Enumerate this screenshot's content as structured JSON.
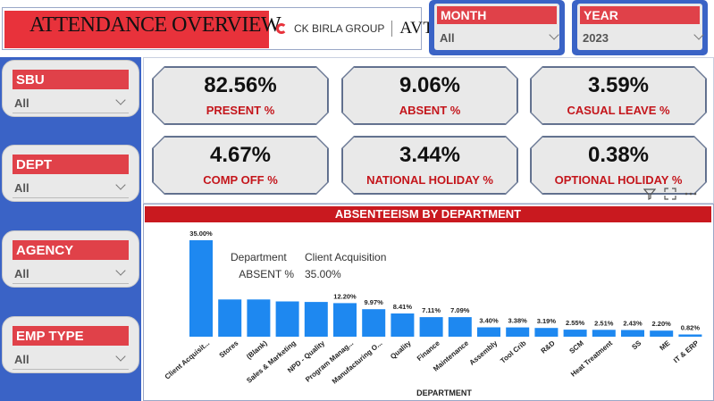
{
  "header": {
    "title": "ATTENDANCE OVERVIEW",
    "logo_group": "CK BIRLA GROUP",
    "logo_brand": "AVTEC",
    "logo_mark": "®"
  },
  "filters_top": [
    {
      "label": "MONTH",
      "value": "All"
    },
    {
      "label": "YEAR",
      "value": "2023"
    }
  ],
  "slicers": [
    {
      "label": "SBU",
      "value": "All"
    },
    {
      "label": "DEPT",
      "value": "All"
    },
    {
      "label": "AGENCY",
      "value": "All"
    },
    {
      "label": "EMP TYPE",
      "value": "All"
    }
  ],
  "kpis": [
    {
      "value": "82.56%",
      "label": "PRESENT %"
    },
    {
      "value": "9.06%",
      "label": "ABSENT %"
    },
    {
      "value": "3.59%",
      "label": "CASUAL LEAVE %"
    },
    {
      "value": "4.67%",
      "label": "COMP OFF %"
    },
    {
      "value": "3.44%",
      "label": "NATIONAL HOLIDAY %"
    },
    {
      "value": "0.38%",
      "label": "OPTIONAL HOLIDAY %"
    }
  ],
  "tooltip": {
    "field1": "Department",
    "value1": "Client Acquisition",
    "field2": "ABSENT %",
    "value2": "35.00%"
  },
  "colors": {
    "accent_red": "#e04149",
    "brand_blue": "#3a63c6",
    "bar": "#1e88f0"
  },
  "chart_data": {
    "type": "bar",
    "title": "ABSENTEEISM BY DEPARTMENT",
    "xlabel": "DEPARTMENT",
    "ylabel": "",
    "categories": [
      "Client Acquisit...",
      "Stores",
      "(Blank)",
      "Sales & Marketing",
      "NPD - Quality",
      "Program Manag...",
      "Manufacturing O...",
      "Quality",
      "Finance",
      "Maintenance",
      "Assembly",
      "Tool Crib",
      "R&D",
      "SCM",
      "Heat Treatment",
      "SS",
      "ME",
      "IT & ERP"
    ],
    "values": [
      35.0,
      13.5,
      13.5,
      12.8,
      12.6,
      12.2,
      9.97,
      8.41,
      7.11,
      7.09,
      3.4,
      3.38,
      3.19,
      2.55,
      2.51,
      2.43,
      2.2,
      0.82
    ],
    "data_labels": [
      "35.00%",
      "",
      "",
      "",
      "",
      "12.20%",
      "9.97%",
      "8.41%",
      "7.11%",
      "7.09%",
      "3.40%",
      "3.38%",
      "3.19%",
      "2.55%",
      "2.51%",
      "2.43%",
      "2.20%",
      "0.82%"
    ],
    "ylim": [
      0,
      35
    ],
    "grid": false,
    "legend": "none"
  }
}
